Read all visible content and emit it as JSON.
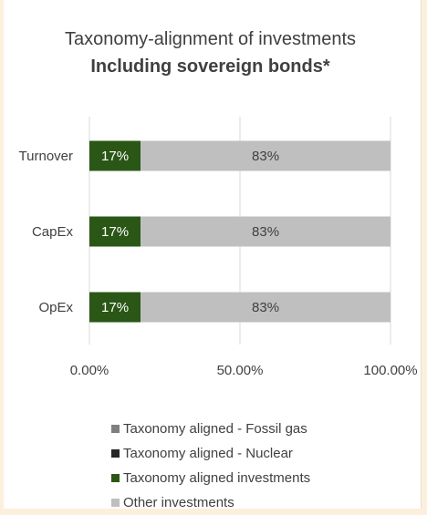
{
  "chart_data": {
    "type": "bar",
    "orientation": "horizontal",
    "stacked": true,
    "title": "Taxonomy-alignment of investments",
    "subtitle": "Including sovereign bonds*",
    "categories": [
      "Turnover",
      "CapEx",
      "OpEx"
    ],
    "xlim": [
      0,
      100
    ],
    "xticks": [
      "0.00%",
      "50.00%",
      "100.00%"
    ],
    "series": [
      {
        "name": "Taxonomy aligned - Fossil gas",
        "color": "#7F7F7F",
        "values": [
          0,
          0,
          0
        ],
        "labels": [
          "",
          "",
          ""
        ]
      },
      {
        "name": "Taxonomy aligned - Nuclear",
        "color": "#262626",
        "values": [
          0,
          0,
          0
        ],
        "labels": [
          "",
          "",
          ""
        ]
      },
      {
        "name": "Taxonomy aligned investments",
        "color": "#2A5716",
        "values": [
          17,
          17,
          17
        ],
        "labels": [
          "17%",
          "17%",
          "17%"
        ]
      },
      {
        "name": "Other investments",
        "color": "#BFBFBF",
        "values": [
          83,
          83,
          83
        ],
        "labels": [
          "83%",
          "83%",
          "83%"
        ]
      }
    ],
    "grid": true,
    "legend_position": "bottom"
  }
}
